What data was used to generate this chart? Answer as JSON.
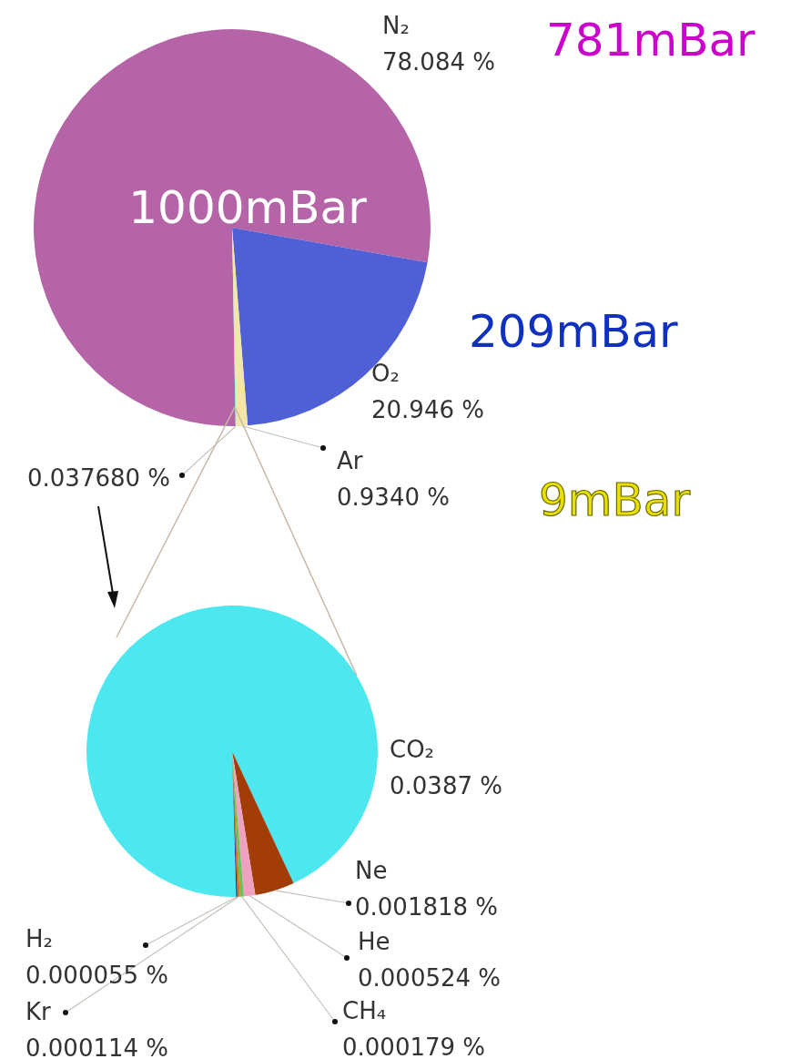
{
  "chart_data": [
    {
      "type": "pie",
      "categories": [
        "N₂",
        "O₂",
        "Ar",
        null
      ],
      "values": [
        78.084,
        20.946,
        0.934,
        0.03768
      ],
      "colors": [
        "#b565a7",
        "#4f5fd6",
        "#f3e6a6",
        "#55e8ee"
      ],
      "value_labels": [
        "78.084 %",
        "20.946 %",
        "0.9340 %",
        "0.037680 %"
      ],
      "annotations": [
        "1000mBar",
        "781mBar",
        "209mBar",
        "9mBar"
      ]
    },
    {
      "type": "pie",
      "categories": [
        "CO₂",
        "Ne",
        "He",
        "CH₄",
        "Kr",
        "H₂"
      ],
      "values": [
        0.0387,
        0.001818,
        0.000524,
        0.000179,
        0.000114,
        5.5e-05
      ],
      "colors": [
        "#4de8ef",
        "#a23d08",
        "#f0a0c0",
        "#6cc05a",
        "#e07020",
        "#1a2a80"
      ],
      "value_labels": [
        "0.0387 %",
        "0.001818 %",
        "0.000524 %",
        "0.000179 %",
        "0.000114 %",
        "0.000055 %"
      ]
    }
  ]
}
